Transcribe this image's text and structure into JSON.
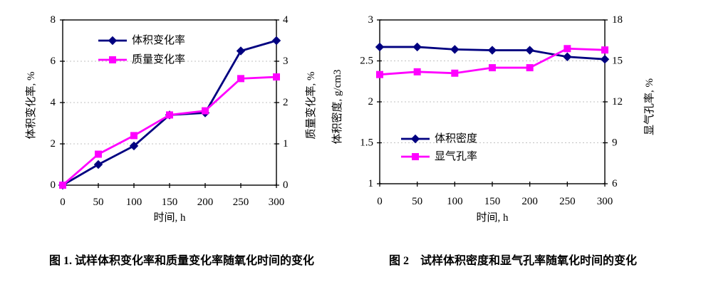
{
  "page": {
    "background": "#ffffff",
    "text_color": "#000000",
    "grid_color": "#c0c0c0"
  },
  "chart_data": [
    {
      "type": "line",
      "caption": "图 1. 试样体积变化率和质量变化率随氧化时间的变化",
      "x": {
        "label": "时间, h",
        "min": 0,
        "max": 300,
        "ticks": [
          0,
          50,
          100,
          150,
          200,
          250,
          300
        ]
      },
      "left_axis": {
        "label": "体积变化率, %",
        "min": 0,
        "max": 8,
        "ticks": [
          0,
          2,
          4,
          6,
          8
        ],
        "grid_ticks": [
          2,
          4,
          6
        ]
      },
      "right_axis": {
        "label": "质量变化率, %",
        "min": 0,
        "max": 4,
        "ticks": [
          0,
          1,
          2,
          3,
          4
        ]
      },
      "grid": true,
      "legend_position": "top-left-inside",
      "series": [
        {
          "name": "体积变化率",
          "axis": "left",
          "color": "#000080",
          "marker": "diamond",
          "x": [
            0,
            50,
            100,
            150,
            200,
            250,
            300
          ],
          "values": [
            0,
            1.0,
            1.9,
            3.4,
            3.5,
            6.5,
            7.0
          ]
        },
        {
          "name": "质量变化率",
          "axis": "right",
          "color": "#ff00ff",
          "marker": "square",
          "x": [
            0,
            50,
            100,
            150,
            200,
            250,
            300
          ],
          "values": [
            0,
            0.75,
            1.2,
            1.7,
            1.8,
            2.58,
            2.62
          ]
        }
      ]
    },
    {
      "type": "line",
      "caption": "图 2　试样体积密度和显气孔率随氧化化时间的变化",
      "x": {
        "label": "时间, h",
        "min": 0,
        "max": 300,
        "ticks": [
          0,
          50,
          100,
          150,
          200,
          250,
          300
        ]
      },
      "left_axis": {
        "label": "体积密度, g/cm3",
        "min": 1,
        "max": 3,
        "ticks": [
          1,
          1.5,
          2,
          2.5,
          3
        ],
        "grid_ticks": [
          1.5,
          2,
          2.5
        ]
      },
      "right_axis": {
        "label": "显气孔率, %",
        "min": 6,
        "max": 18,
        "ticks": [
          6,
          9,
          12,
          15,
          18
        ]
      },
      "grid": true,
      "legend_position": "bottom-left-inside",
      "series": [
        {
          "name": "体积密度",
          "axis": "left",
          "color": "#000080",
          "marker": "diamond",
          "x": [
            0,
            50,
            100,
            150,
            200,
            250,
            300
          ],
          "values": [
            2.67,
            2.67,
            2.64,
            2.63,
            2.63,
            2.55,
            2.52
          ]
        },
        {
          "name": "显气孔率",
          "axis": "right",
          "color": "#ff00ff",
          "marker": "square",
          "x": [
            0,
            50,
            100,
            150,
            200,
            250,
            300
          ],
          "values": [
            14.0,
            14.2,
            14.1,
            14.5,
            14.5,
            15.9,
            15.8
          ]
        }
      ]
    }
  ]
}
